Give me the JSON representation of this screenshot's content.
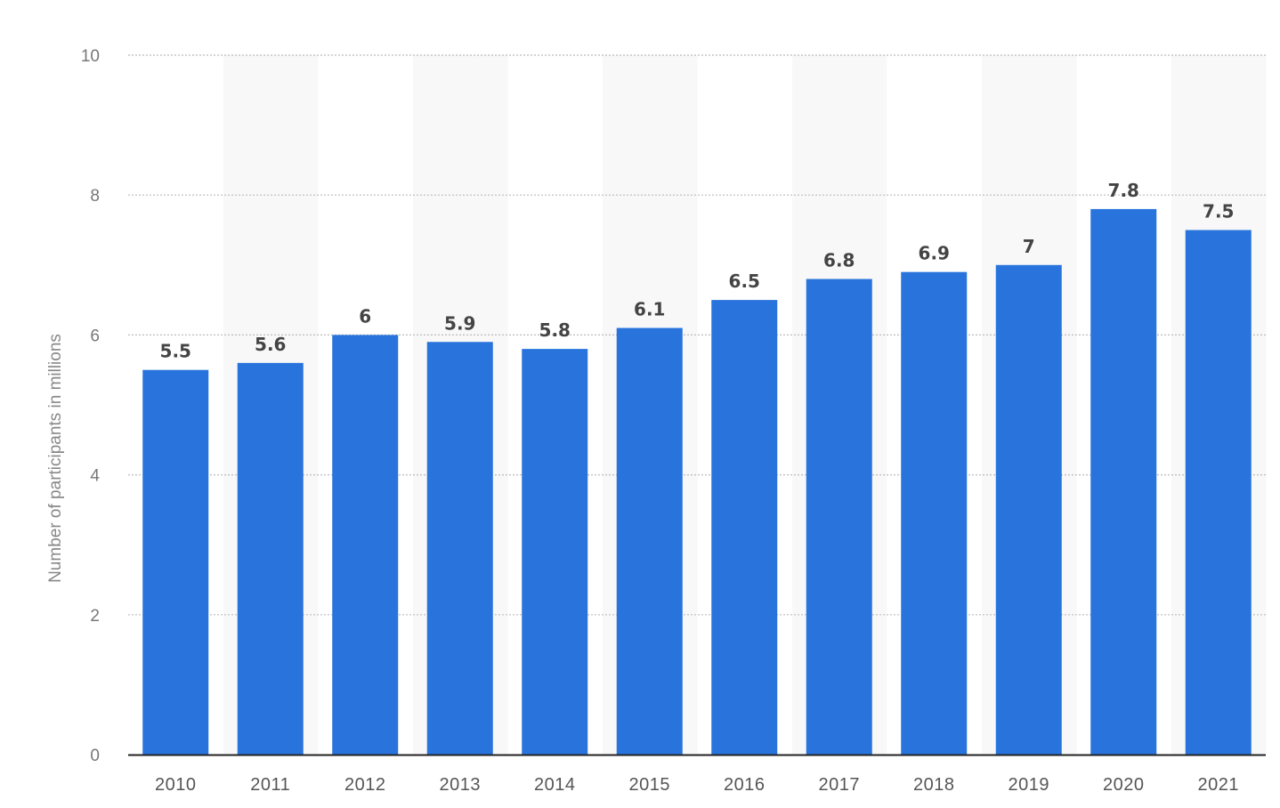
{
  "chart_data": {
    "type": "bar",
    "title": "",
    "xlabel": "",
    "ylabel": "Number of participants in millions",
    "categories": [
      "2010",
      "2011",
      "2012",
      "2013",
      "2014",
      "2015",
      "2016",
      "2017",
      "2018",
      "2019",
      "2020",
      "2021"
    ],
    "values": [
      5.5,
      5.6,
      6,
      5.9,
      5.8,
      6.1,
      6.5,
      6.8,
      6.9,
      7,
      7.8,
      7.5
    ],
    "value_labels": [
      "5.5",
      "5.6",
      "6",
      "5.9",
      "5.8",
      "6.1",
      "6.5",
      "6.8",
      "6.9",
      "7",
      "7.8",
      "7.5"
    ],
    "ylim": [
      0,
      10
    ],
    "yticks": [
      "0",
      "2",
      "4",
      "6",
      "8",
      "10"
    ],
    "grid": true,
    "grid_style": "dotted",
    "alternating_column_bands": true,
    "legend": "none",
    "colors": {
      "bar": "#2874dc",
      "band": "#f8f8f8",
      "grid": "#bbbbbb",
      "axis": "#222222"
    }
  }
}
